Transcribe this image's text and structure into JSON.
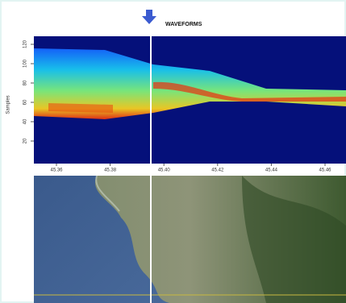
{
  "header": {
    "title": "WAVEFORMS"
  },
  "plot": {
    "y_label": "Samples",
    "y_ticks": [
      "20",
      "40",
      "60",
      "80",
      "100",
      "120"
    ],
    "x_ticks": [
      "45.36",
      "45.38",
      "45.40",
      "45.42",
      "45.44",
      "45.46"
    ]
  }
}
